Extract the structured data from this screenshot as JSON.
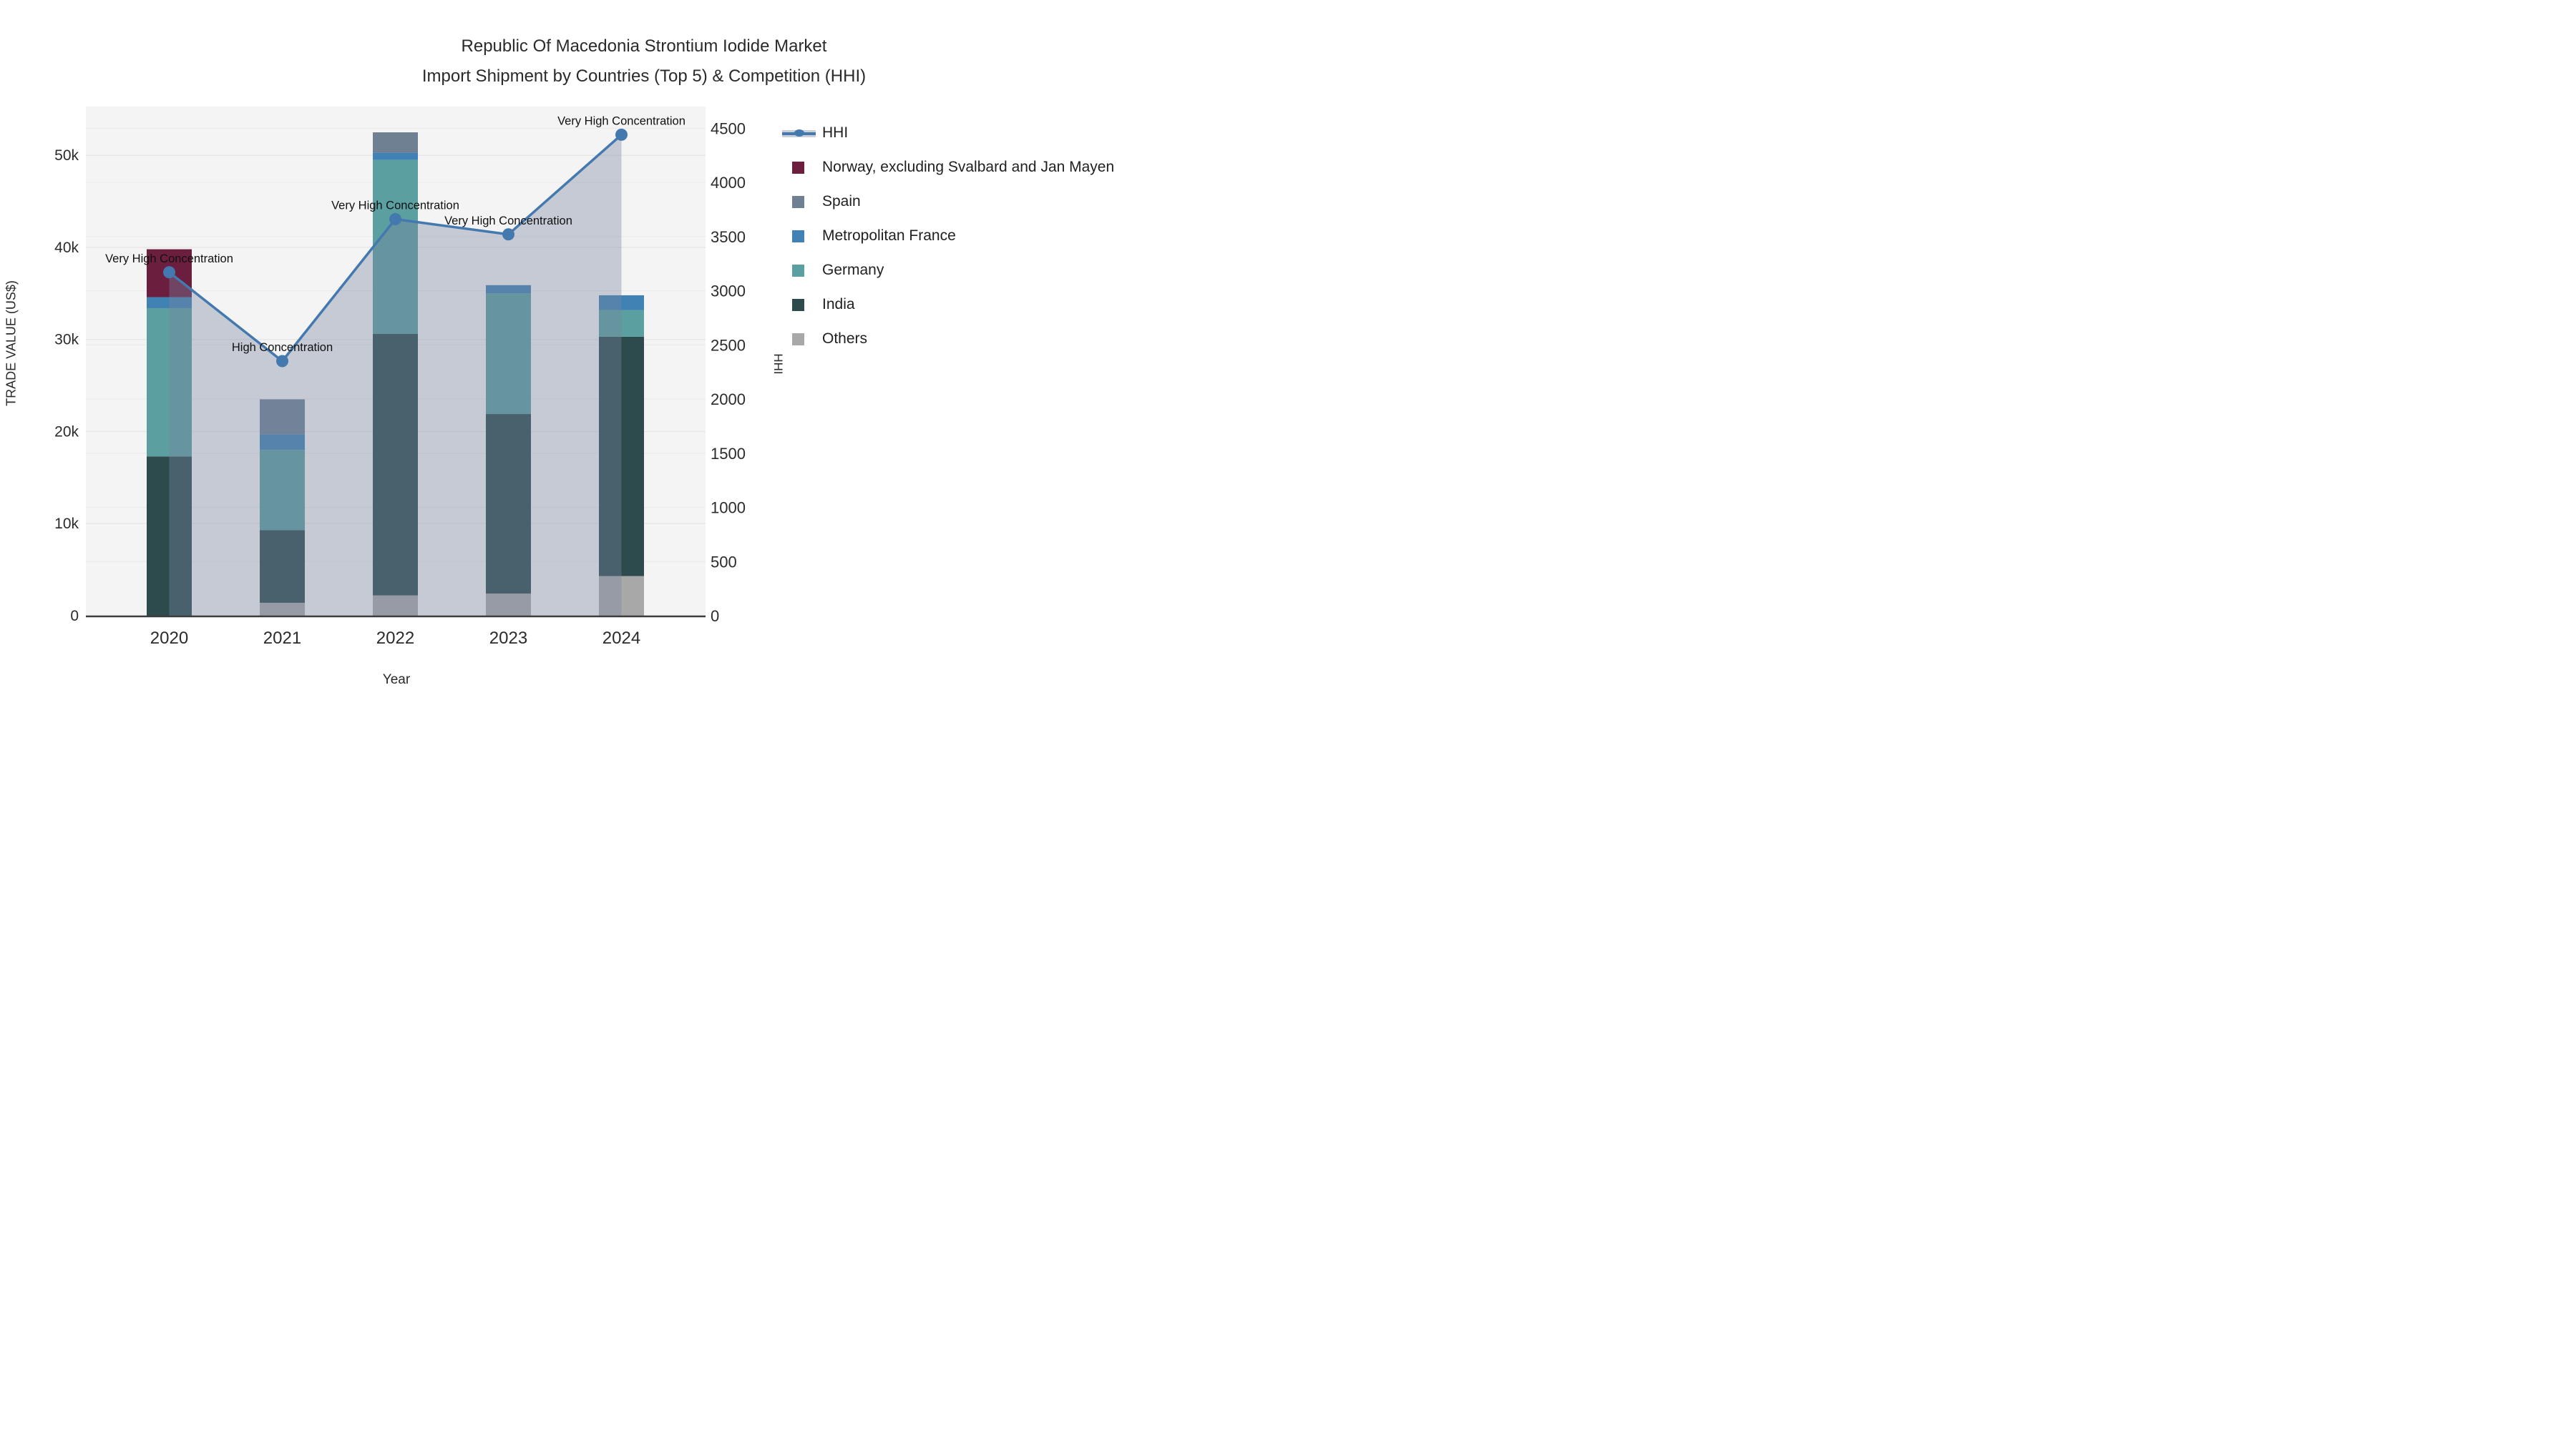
{
  "title": {
    "line1": "Republic Of Macedonia Strontium Iodide Market",
    "line2": "Import Shipment by Countries (Top 5) & Competition (HHI)"
  },
  "axes": {
    "left_title": "TRADE VALUE (US$)",
    "bottom_title": "Year",
    "right_title": "HHI"
  },
  "chart_data": {
    "type": "bar",
    "subtype": "stacked-bars-with-line-overlay",
    "categories": [
      "2020",
      "2021",
      "2022",
      "2023",
      "2024"
    ],
    "series": [
      {
        "name": "Norway, excluding Svalbard and Jan Mayen",
        "color": "#6b1e3e",
        "values": [
          5200,
          0,
          0,
          0,
          0
        ]
      },
      {
        "name": "Spain",
        "color": "#6f8093",
        "values": [
          0,
          3800,
          2200,
          0,
          0
        ]
      },
      {
        "name": "Metropolitan France",
        "color": "#4182b4",
        "values": [
          1200,
          1700,
          800,
          900,
          1600
        ]
      },
      {
        "name": "Germany",
        "color": "#5b9fa1",
        "values": [
          16100,
          8700,
          18900,
          13100,
          2900
        ]
      },
      {
        "name": "India",
        "color": "#2d4b4c",
        "values": [
          17300,
          7900,
          28400,
          19500,
          26000
        ]
      },
      {
        "name": "Others",
        "color": "#a8a8a8",
        "values": [
          0,
          1400,
          2200,
          2400,
          4300
        ]
      }
    ],
    "stack_totals": [
      39800,
      23500,
      52500,
      35900,
      34800
    ],
    "line": {
      "name": "HHI",
      "color": "#4379ae",
      "fill_color": "rgba(120,135,160,0.38)",
      "values": [
        3170,
        2350,
        3660,
        3520,
        4440
      ]
    },
    "annotations": [
      {
        "year": "2020",
        "text": "Very High Concentration"
      },
      {
        "year": "2021",
        "text": "High Concentration"
      },
      {
        "year": "2022",
        "text": "Very High Concentration"
      },
      {
        "year": "2023",
        "text": "Very High Concentration"
      },
      {
        "year": "2024",
        "text": "Very High Concentration"
      }
    ],
    "y_left": {
      "label": "TRADE VALUE (US$)",
      "ticks": [
        0,
        10000,
        20000,
        30000,
        40000,
        50000
      ],
      "tick_labels": [
        "0",
        "10k",
        "20k",
        "30k",
        "40k",
        "50k"
      ],
      "range": [
        0,
        55300
      ]
    },
    "y_right": {
      "label": "HHI",
      "ticks": [
        0,
        500,
        1000,
        1500,
        2000,
        2500,
        3000,
        3500,
        4000,
        4500
      ],
      "tick_labels": [
        "0",
        "500",
        "1000",
        "1500",
        "2000",
        "2500",
        "3000",
        "3500",
        "4000",
        "4500"
      ],
      "range": [
        0,
        4700
      ]
    },
    "xlabel": "Year",
    "grid": true,
    "plot_bg": "#f4f4f4",
    "legend_position": "top-right"
  }
}
